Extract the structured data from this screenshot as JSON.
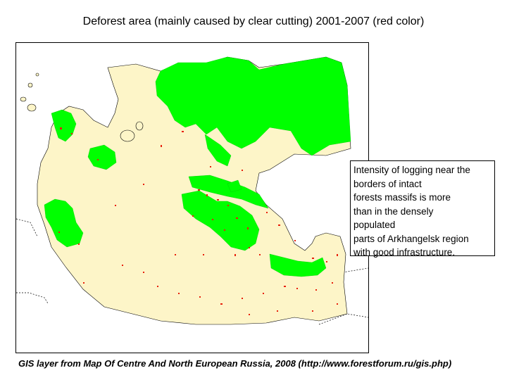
{
  "title": "Deforest area (mainly caused by clear cutting)  2001-2007 (red color)",
  "callout": {
    "lines": [
      "Intensity of logging near the",
      "borders of intact",
      "forests massifs is more",
      "than in the densely",
      "populated",
      "parts of Arkhangelsk region",
      "with good infrastructure."
    ]
  },
  "source": "GIS layer from Map Of Centre And North European Russia, 2008 (http://www.forestforum.ru/gis.php)",
  "colors": {
    "region": "#fdf5c8",
    "intact_forest": "#00ff00",
    "deforestation": "#e8200c",
    "border": "#000000"
  }
}
